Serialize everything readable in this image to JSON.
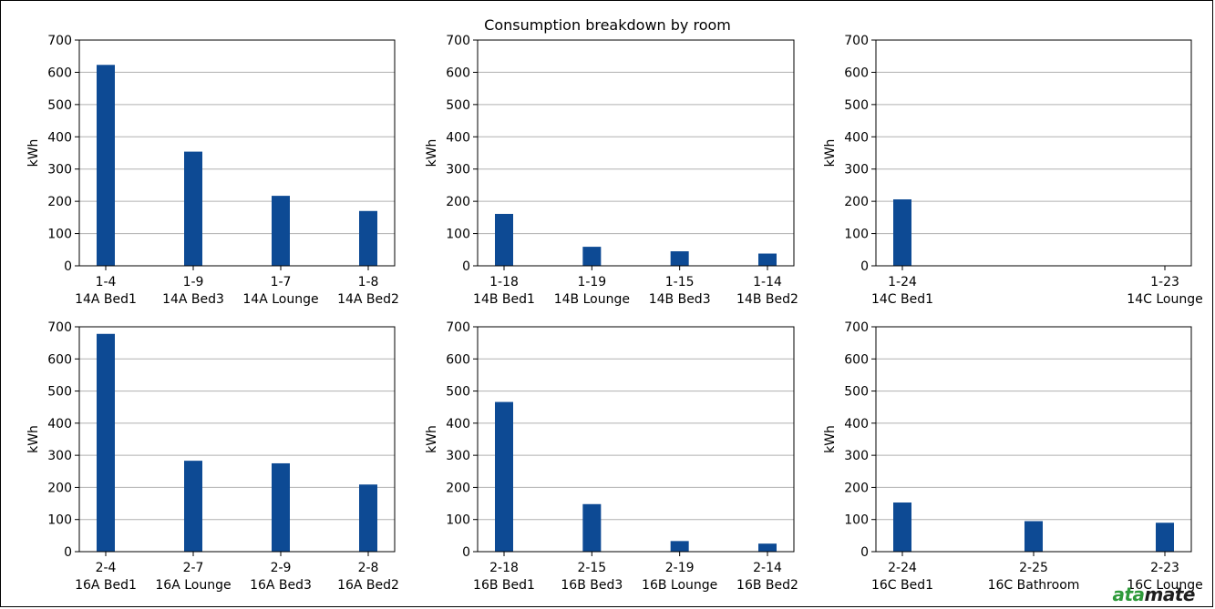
{
  "title": "Consumption breakdown by room",
  "brand": {
    "part1": "ata",
    "part2": "mate"
  },
  "colors": {
    "bar": "#0d4a94",
    "grid": "#b0b0b0",
    "axis": "#000000"
  },
  "chart_data": [
    {
      "type": "bar",
      "ylabel": "kWh",
      "ylim": [
        0,
        700
      ],
      "yticks": [
        0,
        100,
        200,
        300,
        400,
        500,
        600,
        700
      ],
      "grid": true,
      "categories": [
        "1-4\n14A Bed1",
        "1-9\n14A Bed3",
        "1-7\n14A Lounge",
        "1-8\n14A Bed2"
      ],
      "values": [
        623,
        354,
        217,
        170
      ]
    },
    {
      "type": "bar",
      "ylabel": "kWh",
      "ylim": [
        0,
        700
      ],
      "yticks": [
        0,
        100,
        200,
        300,
        400,
        500,
        600,
        700
      ],
      "grid": true,
      "categories": [
        "1-18\n14B Bed1",
        "1-19\n14B Lounge",
        "1-15\n14B Bed3",
        "1-14\n14B Bed2"
      ],
      "values": [
        161,
        59,
        45,
        38
      ]
    },
    {
      "type": "bar",
      "ylabel": "kWh",
      "ylim": [
        0,
        700
      ],
      "yticks": [
        0,
        100,
        200,
        300,
        400,
        500,
        600,
        700
      ],
      "grid": true,
      "categories": [
        "1-24\n14C Bed1",
        "1-23\n14C Lounge"
      ],
      "values": [
        206,
        0
      ]
    },
    {
      "type": "bar",
      "ylabel": "kWh",
      "ylim": [
        0,
        700
      ],
      "yticks": [
        0,
        100,
        200,
        300,
        400,
        500,
        600,
        700
      ],
      "grid": true,
      "categories": [
        "2-4\n16A Bed1",
        "2-7\n16A Lounge",
        "2-9\n16A Bed3",
        "2-8\n16A Bed2"
      ],
      "values": [
        678,
        283,
        275,
        209
      ]
    },
    {
      "type": "bar",
      "ylabel": "kWh",
      "ylim": [
        0,
        700
      ],
      "yticks": [
        0,
        100,
        200,
        300,
        400,
        500,
        600,
        700
      ],
      "grid": true,
      "categories": [
        "2-18\n16B Bed1",
        "2-15\n16B Bed3",
        "2-19\n16B Lounge",
        "2-14\n16B Bed2"
      ],
      "values": [
        466,
        148,
        33,
        25
      ]
    },
    {
      "type": "bar",
      "ylabel": "kWh",
      "ylim": [
        0,
        700
      ],
      "yticks": [
        0,
        100,
        200,
        300,
        400,
        500,
        600,
        700
      ],
      "grid": true,
      "categories": [
        "2-24\n16C Bed1",
        "2-25\n16C Bathroom",
        "2-23\n16C Lounge"
      ],
      "values": [
        153,
        95,
        90
      ]
    }
  ]
}
